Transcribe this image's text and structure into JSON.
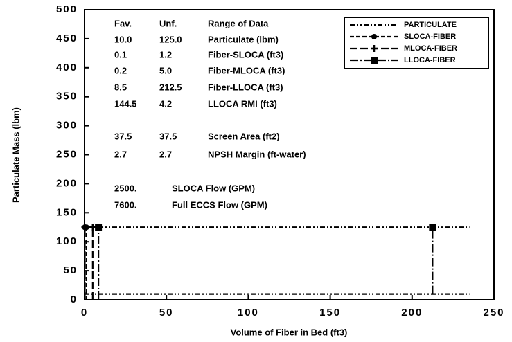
{
  "chart_data": {
    "type": "line",
    "xlabel": "Volume of Fiber in Bed (ft3)",
    "ylabel": "Particulate Mass (lbm)",
    "xlim": [
      0,
      250
    ],
    "xticks": [
      0,
      50,
      100,
      150,
      200,
      250
    ],
    "ylim": [
      0,
      500
    ],
    "yticks": [
      0,
      50,
      100,
      150,
      200,
      250,
      300,
      350,
      400,
      450,
      500
    ],
    "legend": "upper right",
    "series": [
      {
        "name": "PARTICULATE",
        "color": "#000000",
        "dash": "dash-dot-dot",
        "marker": "none",
        "x": [
          0,
          235,
          null,
          0,
          235
        ],
        "values": [
          125,
          125,
          null,
          10,
          10
        ]
      },
      {
        "name": "SLOCA-FIBER",
        "color": "#000000",
        "dash": "short-dash",
        "marker": "circle",
        "x": [
          0.1,
          0.1,
          null,
          1.2,
          1.2
        ],
        "values": [
          0,
          125,
          null,
          0,
          125
        ]
      },
      {
        "name": "MLOCA-FIBER",
        "color": "#000000",
        "dash": "long-dash",
        "marker": "plus",
        "x": [
          0.2,
          0.2,
          null,
          5.0,
          5.0
        ],
        "values": [
          0,
          125,
          null,
          0,
          125
        ]
      },
      {
        "name": "LLOCA-FIBER",
        "color": "#000000",
        "dash": "dash-dot",
        "marker": "square",
        "x": [
          8.5,
          8.5,
          null,
          212.5,
          212.5
        ],
        "values": [
          0,
          125,
          null,
          10,
          125
        ]
      }
    ],
    "annotation_table": [
      [
        "Fav.",
        "Unf.",
        "Range of Data"
      ],
      [
        "10.0",
        "125.0",
        "Particulate (lbm)"
      ],
      [
        "0.1",
        "1.2",
        "Fiber-SLOCA (ft3)"
      ],
      [
        "0.2",
        "5.0",
        "Fiber-MLOCA (ft3)"
      ],
      [
        "8.5",
        "212.5",
        "Fiber-LLOCA (ft3)"
      ],
      [
        "144.5",
        "4.2",
        "LLOCA RMI (ft3)"
      ],
      [
        "37.5",
        "37.5",
        "Screen Area (ft2)"
      ],
      [
        "2.7",
        "2.7",
        "NPSH Margin (ft-water)"
      ],
      [
        "2500.",
        "SLOCA Flow (GPM)"
      ],
      [
        "7600.",
        "Full ECCS Flow (GPM)"
      ]
    ]
  }
}
